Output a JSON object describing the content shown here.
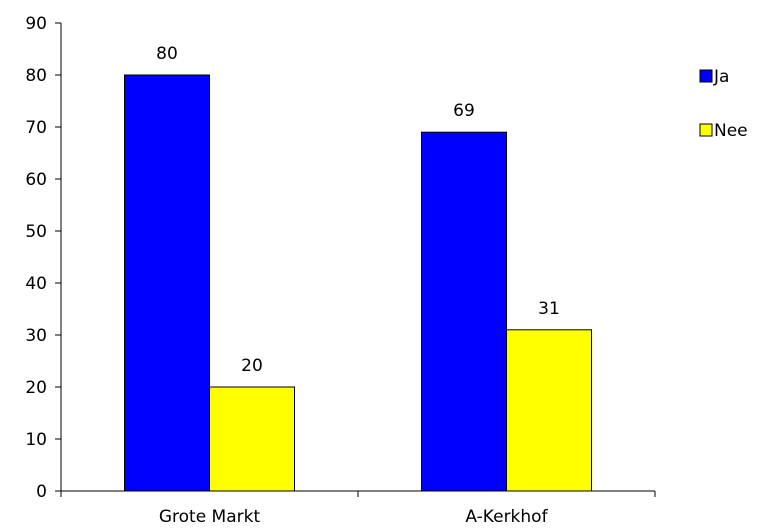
{
  "chart_data": {
    "type": "bar",
    "categories": [
      "Grote Markt",
      "A-Kerkhof"
    ],
    "series": [
      {
        "name": "Ja",
        "values": [
          80,
          69
        ],
        "color": "#0000FF"
      },
      {
        "name": "Nee",
        "values": [
          20,
          31
        ],
        "color": "#FFFF00"
      }
    ],
    "ylim": [
      0,
      90
    ],
    "yticks": [
      0,
      10,
      20,
      30,
      40,
      50,
      60,
      70,
      80,
      90
    ],
    "grid": false,
    "data_labels": true,
    "legend_position": "right"
  }
}
